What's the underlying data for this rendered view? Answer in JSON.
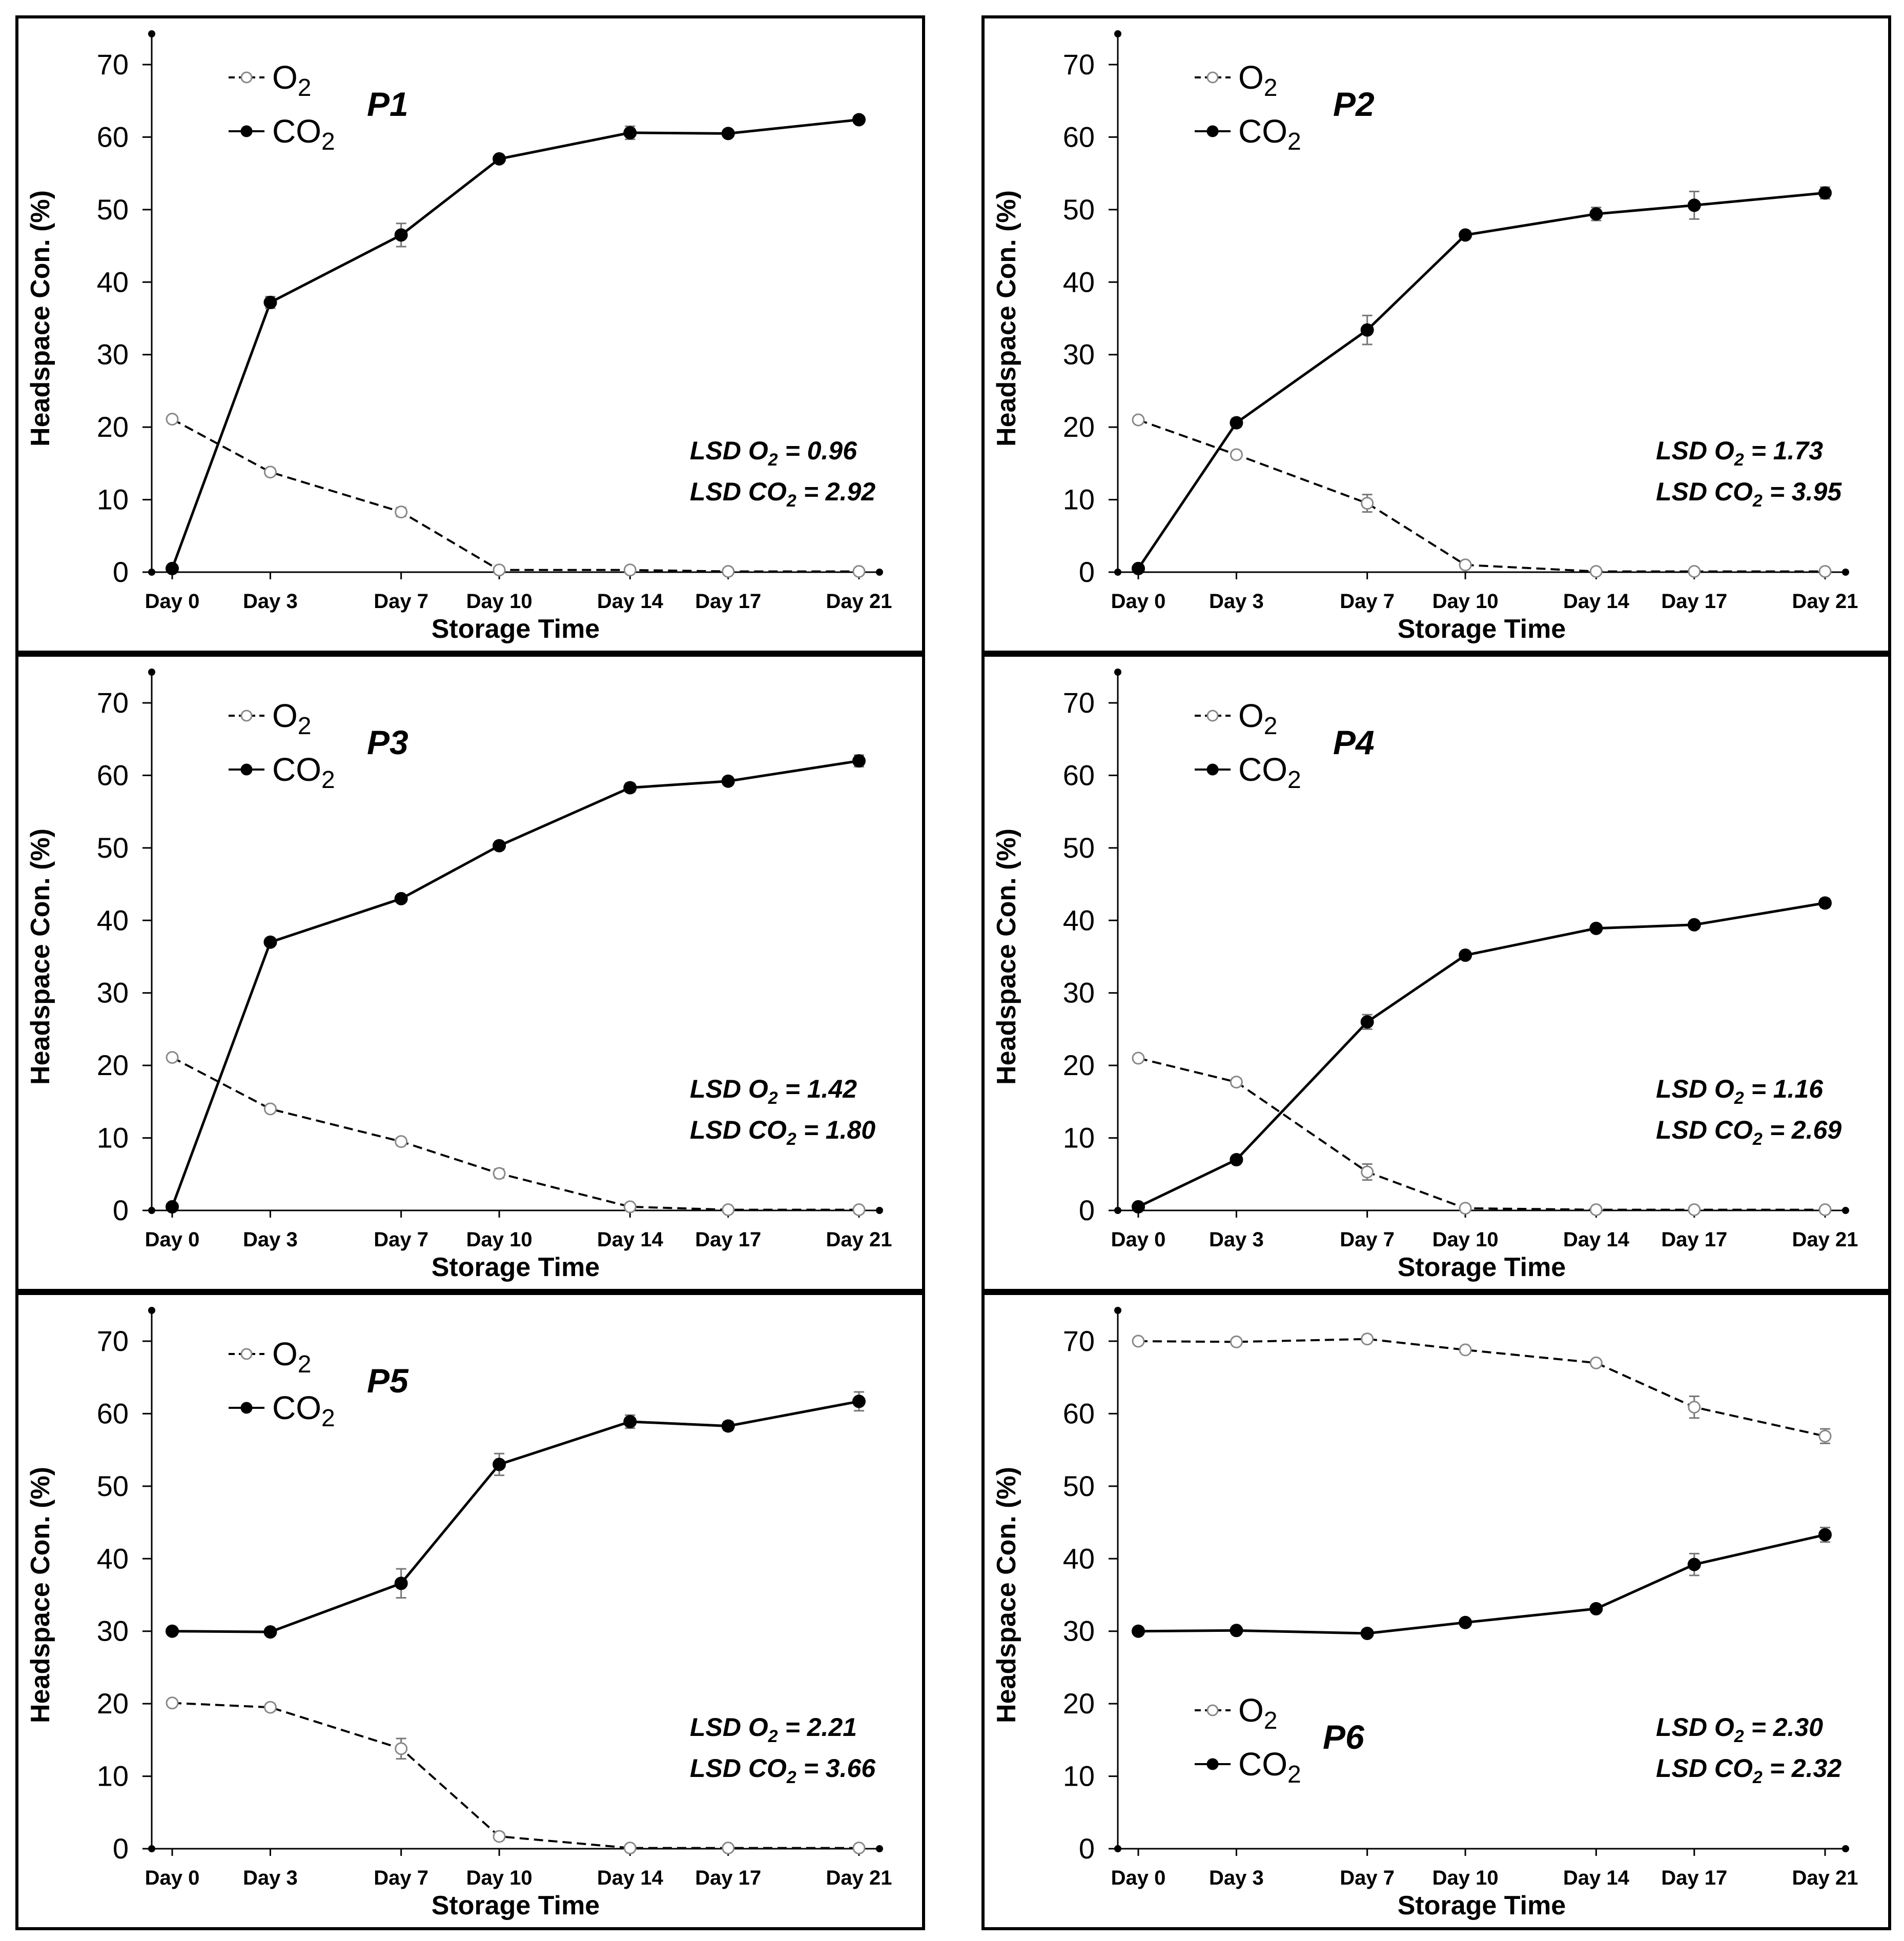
{
  "chart_data": [
    {
      "type": "line",
      "panel_label": "P1",
      "xlabel": "Storage Time",
      "ylabel": "Headspace Con. (%)",
      "ylim": [
        0,
        70
      ],
      "yticks": [
        0,
        10,
        20,
        30,
        40,
        50,
        60,
        70
      ],
      "x": [
        0,
        3,
        7,
        10,
        14,
        17,
        21
      ],
      "x_tick_labels": [
        "Day 0",
        "Day 3",
        "Day 7",
        "Day 10",
        "Day 14",
        "Day 17",
        "Day 21"
      ],
      "legend_position": "top-left",
      "series": [
        {
          "name": "O2",
          "style": "dashed, open circles",
          "values": [
            21.1,
            13.8,
            8.3,
            0.3,
            0.3,
            0.1,
            0.1
          ],
          "errors": [
            0.3,
            0.5,
            0.6,
            0.2,
            0.2,
            0.1,
            0.1
          ]
        },
        {
          "name": "CO2",
          "style": "solid, filled circles",
          "values": [
            0.5,
            37.2,
            46.5,
            57.0,
            60.6,
            60.5,
            62.4
          ],
          "errors": [
            0.2,
            0.8,
            1.6,
            0.5,
            0.9,
            0.4,
            0.5
          ]
        }
      ],
      "annotations": [
        {
          "lsd_label": "LSD O",
          "sub": "2",
          "value": "= 0.96"
        },
        {
          "lsd_label": "LSD CO",
          "sub": "2",
          "value": "= 2.92"
        }
      ]
    },
    {
      "type": "line",
      "panel_label": "P2",
      "xlabel": "Storage Time",
      "ylabel": "Headspace Con. (%)",
      "ylim": [
        0,
        70
      ],
      "yticks": [
        0,
        10,
        20,
        30,
        40,
        50,
        60,
        70
      ],
      "x": [
        0,
        3,
        7,
        10,
        14,
        17,
        21
      ],
      "x_tick_labels": [
        "Day 0",
        "Day 3",
        "Day 7",
        "Day 10",
        "Day 14",
        "Day 17",
        "Day 21"
      ],
      "legend_position": "top-left",
      "series": [
        {
          "name": "O2",
          "style": "dashed, open circles",
          "values": [
            21.0,
            16.2,
            9.5,
            1.0,
            0.1,
            0.1,
            0.1
          ],
          "errors": [
            0.3,
            0.5,
            1.2,
            0.3,
            0.1,
            0.1,
            0.1
          ]
        },
        {
          "name": "CO2",
          "style": "solid, filled circles",
          "values": [
            0.5,
            20.6,
            33.4,
            46.5,
            49.4,
            50.6,
            52.3
          ],
          "errors": [
            0.2,
            0.6,
            2.0,
            0.5,
            0.9,
            1.9,
            0.8
          ]
        }
      ],
      "annotations": [
        {
          "lsd_label": "LSD O",
          "sub": "2",
          "value": "= 1.73"
        },
        {
          "lsd_label": "LSD CO",
          "sub": "2",
          "value": "= 3.95"
        }
      ]
    },
    {
      "type": "line",
      "panel_label": "P3",
      "xlabel": "Storage Time",
      "ylabel": "Headspace Con. (%)",
      "ylim": [
        0,
        70
      ],
      "yticks": [
        0,
        10,
        20,
        30,
        40,
        50,
        60,
        70
      ],
      "x": [
        0,
        3,
        7,
        10,
        14,
        17,
        21
      ],
      "x_tick_labels": [
        "Day 0",
        "Day 3",
        "Day 7",
        "Day 10",
        "Day 14",
        "Day 17",
        "Day 21"
      ],
      "legend_position": "top-left",
      "series": [
        {
          "name": "O2",
          "style": "dashed, open circles",
          "values": [
            21.1,
            14.0,
            9.5,
            5.1,
            0.5,
            0.1,
            0.1
          ],
          "errors": [
            0.3,
            0.4,
            0.5,
            0.6,
            0.3,
            0.1,
            0.1
          ]
        },
        {
          "name": "CO2",
          "style": "solid, filled circles",
          "values": [
            0.5,
            37.0,
            43.0,
            50.3,
            58.3,
            59.2,
            62.0
          ],
          "errors": [
            0.2,
            0.5,
            0.5,
            0.5,
            0.6,
            0.5,
            0.8
          ]
        }
      ],
      "annotations": [
        {
          "lsd_label": "LSD O",
          "sub": "2",
          "value": "= 1.42"
        },
        {
          "lsd_label": "LSD CO",
          "sub": "2",
          "value": "= 1.80"
        }
      ]
    },
    {
      "type": "line",
      "panel_label": "P4",
      "xlabel": "Storage Time",
      "ylabel": "Headspace Con. (%)",
      "ylim": [
        0,
        70
      ],
      "yticks": [
        0,
        10,
        20,
        30,
        40,
        50,
        60,
        70
      ],
      "x": [
        0,
        3,
        7,
        10,
        14,
        17,
        21
      ],
      "x_tick_labels": [
        "Day 0",
        "Day 3",
        "Day 7",
        "Day 10",
        "Day 14",
        "Day 17",
        "Day 21"
      ],
      "legend_position": "top-left",
      "series": [
        {
          "name": "O2",
          "style": "dashed, open circles",
          "values": [
            21.0,
            17.7,
            5.3,
            0.3,
            0.1,
            0.1,
            0.1
          ],
          "errors": [
            0.3,
            0.5,
            1.1,
            0.2,
            0.1,
            0.1,
            0.1
          ]
        },
        {
          "name": "CO2",
          "style": "solid, filled circles",
          "values": [
            0.5,
            7.0,
            26.0,
            35.2,
            38.9,
            39.4,
            42.4
          ],
          "errors": [
            0.2,
            0.4,
            1.0,
            0.5,
            0.5,
            0.5,
            0.6
          ]
        }
      ],
      "annotations": [
        {
          "lsd_label": "LSD O",
          "sub": "2",
          "value": "= 1.16"
        },
        {
          "lsd_label": "LSD CO",
          "sub": "2",
          "value": "= 2.69"
        }
      ]
    },
    {
      "type": "line",
      "panel_label": "P5",
      "xlabel": "Storage Time",
      "ylabel": "Headspace Con. (%)",
      "ylim": [
        0,
        70
      ],
      "yticks": [
        0,
        10,
        20,
        30,
        40,
        50,
        60,
        70
      ],
      "x": [
        0,
        3,
        7,
        10,
        14,
        17,
        21
      ],
      "x_tick_labels": [
        "Day 0",
        "Day 3",
        "Day 7",
        "Day 10",
        "Day 14",
        "Day 17",
        "Day 21"
      ],
      "legend_position": "top-left",
      "series": [
        {
          "name": "O2",
          "style": "dashed, open circles",
          "values": [
            20.1,
            19.5,
            13.8,
            1.7,
            0.1,
            0.1,
            0.1
          ],
          "errors": [
            0.3,
            0.5,
            1.4,
            0.5,
            0.1,
            0.1,
            0.1
          ]
        },
        {
          "name": "CO2",
          "style": "solid, filled circles",
          "values": [
            30.0,
            29.9,
            36.6,
            53.0,
            58.9,
            58.3,
            61.7
          ],
          "errors": [
            0.3,
            0.3,
            2.0,
            1.5,
            0.9,
            0.6,
            1.3
          ]
        }
      ],
      "annotations": [
        {
          "lsd_label": "LSD O",
          "sub": "2",
          "value": "= 2.21"
        },
        {
          "lsd_label": "LSD CO",
          "sub": "2",
          "value": "= 3.66"
        }
      ]
    },
    {
      "type": "line",
      "panel_label": "P6",
      "xlabel": "Storage Time",
      "ylabel": "Headspace Con. (%)",
      "ylim": [
        0,
        70
      ],
      "yticks": [
        0,
        10,
        20,
        30,
        40,
        50,
        60,
        70
      ],
      "x": [
        0,
        3,
        7,
        10,
        14,
        17,
        21
      ],
      "x_tick_labels": [
        "Day 0",
        "Day 3",
        "Day 7",
        "Day 10",
        "Day 14",
        "Day 17",
        "Day 21"
      ],
      "legend_position": "bottom-left",
      "series": [
        {
          "name": "O2",
          "style": "dashed, open circles",
          "values": [
            70.0,
            69.9,
            70.3,
            68.8,
            67.0,
            60.9,
            56.9
          ],
          "errors": [
            0.3,
            0.3,
            0.4,
            0.4,
            0.4,
            1.5,
            1.0
          ]
        },
        {
          "name": "CO2",
          "style": "solid, filled circles",
          "values": [
            30.0,
            30.1,
            29.7,
            31.2,
            33.1,
            39.2,
            43.3
          ],
          "errors": [
            0.3,
            0.3,
            0.3,
            0.4,
            0.5,
            1.5,
            1.0
          ]
        }
      ],
      "annotations": [
        {
          "lsd_label": "LSD O",
          "sub": "2",
          "value": "= 2.30"
        },
        {
          "lsd_label": "LSD CO",
          "sub": "2",
          "value": "= 2.32"
        }
      ]
    }
  ]
}
